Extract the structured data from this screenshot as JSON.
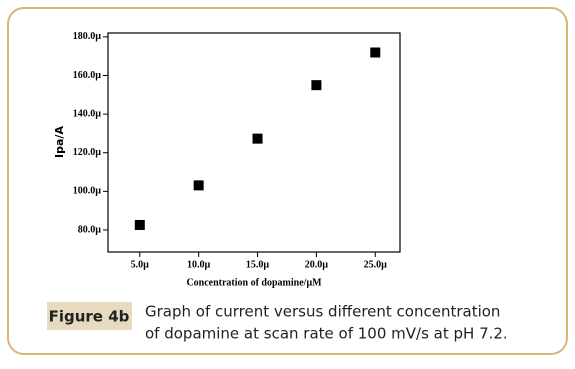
{
  "chart_data": {
    "type": "scatter",
    "ylabel": "Ipa/A",
    "xlabel": "Concentration of dopamine/μM",
    "x": [
      5,
      10,
      15,
      20,
      25
    ],
    "values": [
      82.6,
      103.1,
      127.3,
      155.0,
      171.9
    ],
    "color": "#000000",
    "marker": "square",
    "xlim": [
      2.3,
      27.1
    ],
    "ylim": [
      68.6,
      182
    ],
    "xticks": [
      {
        "value": 5,
        "label": "5.0µ"
      },
      {
        "value": 10,
        "label": "10.0µ"
      },
      {
        "value": 15,
        "label": "15.0µ"
      },
      {
        "value": 20,
        "label": "20.0µ"
      },
      {
        "value": 25,
        "label": "25.0µ"
      }
    ],
    "yticks": [
      {
        "value": 80,
        "label": "80.0µ"
      },
      {
        "value": 100,
        "label": "100.0µ"
      },
      {
        "value": 120,
        "label": "120.0µ"
      },
      {
        "value": 140,
        "label": "140.0µ"
      },
      {
        "value": 160,
        "label": "160.0µ"
      },
      {
        "value": 180,
        "label": "180.0µ"
      }
    ]
  },
  "caption": {
    "label": "Figure 4b",
    "lines": [
      "Graph of current versus different concentration",
      "of dopamine at scan rate of 100 mV/s at pH 7.2."
    ]
  }
}
